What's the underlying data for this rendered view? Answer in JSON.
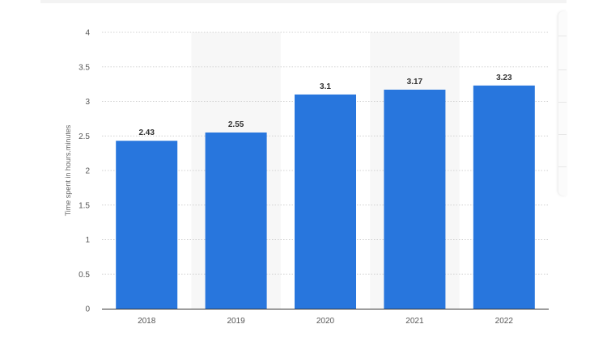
{
  "chart_data": {
    "type": "bar",
    "categories": [
      "2018",
      "2019",
      "2020",
      "2021",
      "2022"
    ],
    "values": [
      2.43,
      2.55,
      3.1,
      3.17,
      3.23
    ],
    "value_labels": [
      "2.43",
      "2.55",
      "3.1",
      "3.17",
      "3.23"
    ],
    "title": "",
    "xlabel": "",
    "ylabel": "Time spent in hours.minutes",
    "ylim": [
      0,
      4
    ],
    "yticks": [
      "0",
      "0.5",
      "1",
      "1.5",
      "2",
      "2.5",
      "3",
      "3.5",
      "4"
    ],
    "grid": true,
    "legend": "none",
    "colors": {
      "bar": "#2876dd",
      "band": "#f7f7f7",
      "grid": "#d2d2d2",
      "axis": "#333333"
    }
  }
}
